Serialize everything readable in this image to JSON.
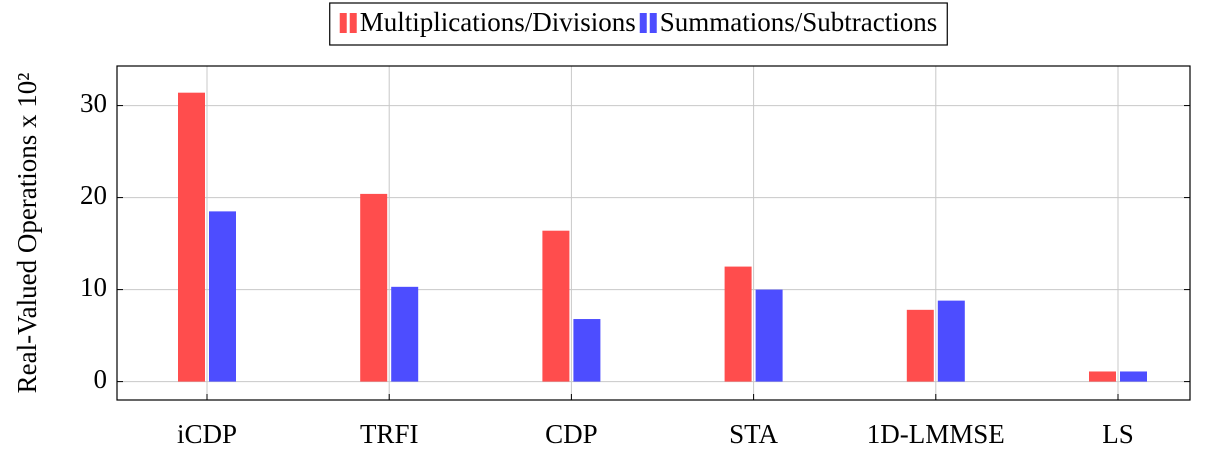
{
  "chart_data": {
    "type": "bar",
    "y_label": "Real-Valued Operations x 10²",
    "categories": [
      "iCDP",
      "TRFI",
      "CDP",
      "STA",
      "1D-LMMSE",
      "LS"
    ],
    "series": [
      {
        "name": "Multiplications/Divisions",
        "color": "#ff4d4d",
        "values": [
          31.4,
          20.4,
          16.4,
          12.5,
          7.8,
          1.1
        ]
      },
      {
        "name": "Summations/Subtractions",
        "color": "#4d4dff",
        "values": [
          18.5,
          10.3,
          6.8,
          10.0,
          8.8,
          1.1
        ]
      }
    ],
    "ylim": [
      -2,
      34.3
    ],
    "yticks": [
      0,
      10,
      20,
      30
    ],
    "grid": true,
    "legend": "top"
  }
}
